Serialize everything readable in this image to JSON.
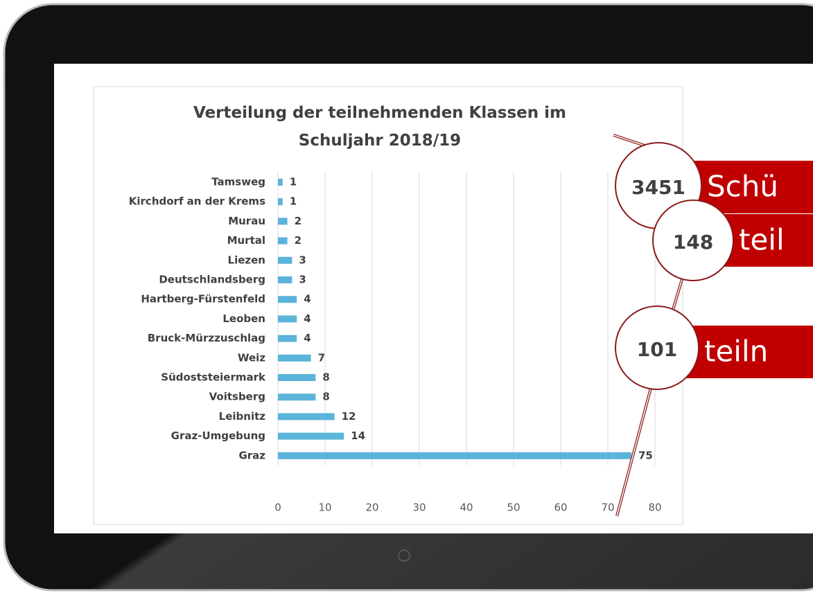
{
  "chart_data": {
    "type": "hbar",
    "title": "Verteilung der teilnehmenden Klassen im Schuljahr 2018/19",
    "categories": [
      "Tamsweg",
      "Kirchdorf an der Krems",
      "Murau",
      "Murtal",
      "Liezen",
      "Deutschlandsberg",
      "Hartberg-Fürstenfeld",
      "Leoben",
      "Bruck-Mürzzuschlag",
      "Weiz",
      "Südoststeiermark",
      "Voitsberg",
      "Leibnitz",
      "Graz-Umgebung",
      "Graz"
    ],
    "values": [
      1,
      1,
      2,
      2,
      3,
      3,
      4,
      4,
      4,
      7,
      8,
      8,
      12,
      14,
      75
    ],
    "color": "#5bb4d9",
    "xlim": [
      0,
      80
    ],
    "xticks": [
      0,
      10,
      20,
      30,
      40,
      50,
      60,
      70,
      80
    ],
    "grid": true
  },
  "callouts": [
    {
      "number": "3451",
      "label": "Schü"
    },
    {
      "number": "148",
      "label": "teil"
    },
    {
      "number": "101",
      "label": "teiln"
    }
  ]
}
